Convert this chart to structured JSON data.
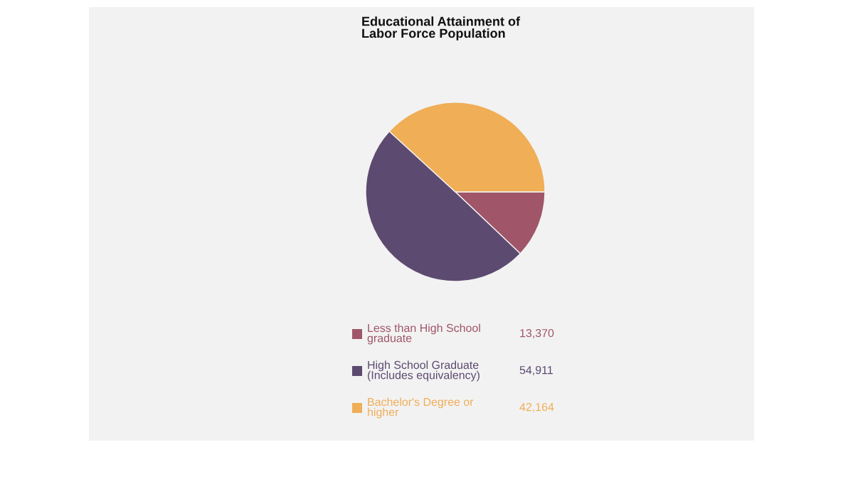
{
  "chart_data": {
    "type": "pie",
    "title": "Educational Attainment of Labor Force Population",
    "categories": [
      "Less than High School graduate",
      "High School Graduate (Includes equivalency)",
      "Bachelor's Degree or higher"
    ],
    "values": [
      13370,
      54911,
      42164
    ],
    "colors": [
      "#a05568",
      "#5c4a70",
      "#f0ae57"
    ],
    "value_labels": [
      "13,370",
      "54,911",
      "42,164"
    ],
    "legend": "bottom"
  }
}
